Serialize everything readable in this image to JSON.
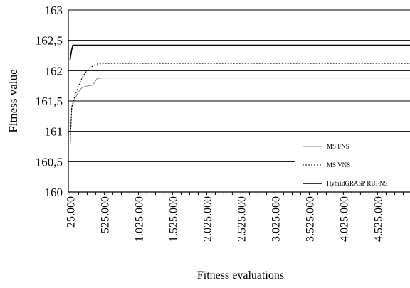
{
  "chart_data": {
    "type": "line",
    "title": "",
    "xlabel": "Fitness evaluations",
    "ylabel": "Fitness value",
    "xlim": [
      0,
      5000000
    ],
    "ylim": [
      160,
      163
    ],
    "grid": true,
    "legend_position": "bottom-right",
    "y_ticks": [
      {
        "value": 160,
        "label": "160"
      },
      {
        "value": 160.5,
        "label": "160,5"
      },
      {
        "value": 161,
        "label": "161"
      },
      {
        "value": 161.5,
        "label": "161,5"
      },
      {
        "value": 162,
        "label": "162"
      },
      {
        "value": 162.5,
        "label": "162,5"
      },
      {
        "value": 163,
        "label": "163"
      }
    ],
    "x_ticks": [
      {
        "value": 25000,
        "label": "25.000"
      },
      {
        "value": 525000,
        "label": "525.000"
      },
      {
        "value": 1025000,
        "label": "1.025.000"
      },
      {
        "value": 1525000,
        "label": "1.525.000"
      },
      {
        "value": 2025000,
        "label": "2.025.000"
      },
      {
        "value": 2525000,
        "label": "2.525.000"
      },
      {
        "value": 3025000,
        "label": "3.025.000"
      },
      {
        "value": 3525000,
        "label": "3.525.000"
      },
      {
        "value": 4025000,
        "label": "4.025.000"
      },
      {
        "value": 4525000,
        "label": "4.525.000"
      }
    ],
    "series": [
      {
        "name": "MS FNS",
        "style": "solid-thin",
        "color": "#888888",
        "points": [
          [
            25000,
            160.8
          ],
          [
            50000,
            161.4
          ],
          [
            100000,
            161.55
          ],
          [
            150000,
            161.65
          ],
          [
            200000,
            161.72
          ],
          [
            250000,
            161.74
          ],
          [
            300000,
            161.75
          ],
          [
            350000,
            161.76
          ],
          [
            380000,
            161.8
          ],
          [
            420000,
            161.87
          ],
          [
            500000,
            161.88
          ],
          [
            5000000,
            161.88
          ]
        ]
      },
      {
        "name": "MS VNS",
        "style": "dotted",
        "color": "#000000",
        "points": [
          [
            25000,
            160.75
          ],
          [
            50000,
            161.4
          ],
          [
            100000,
            161.6
          ],
          [
            150000,
            161.75
          ],
          [
            200000,
            161.88
          ],
          [
            250000,
            161.97
          ],
          [
            300000,
            162.03
          ],
          [
            350000,
            162.07
          ],
          [
            400000,
            162.1
          ],
          [
            450000,
            162.12
          ],
          [
            500000,
            162.12
          ],
          [
            5000000,
            162.12
          ]
        ]
      },
      {
        "name": "HybridGRASP RUFNS",
        "style": "solid-thick",
        "color": "#000000",
        "points": [
          [
            25000,
            162.18
          ],
          [
            45000,
            162.32
          ],
          [
            65000,
            162.42
          ],
          [
            5000000,
            162.42
          ]
        ]
      }
    ]
  }
}
